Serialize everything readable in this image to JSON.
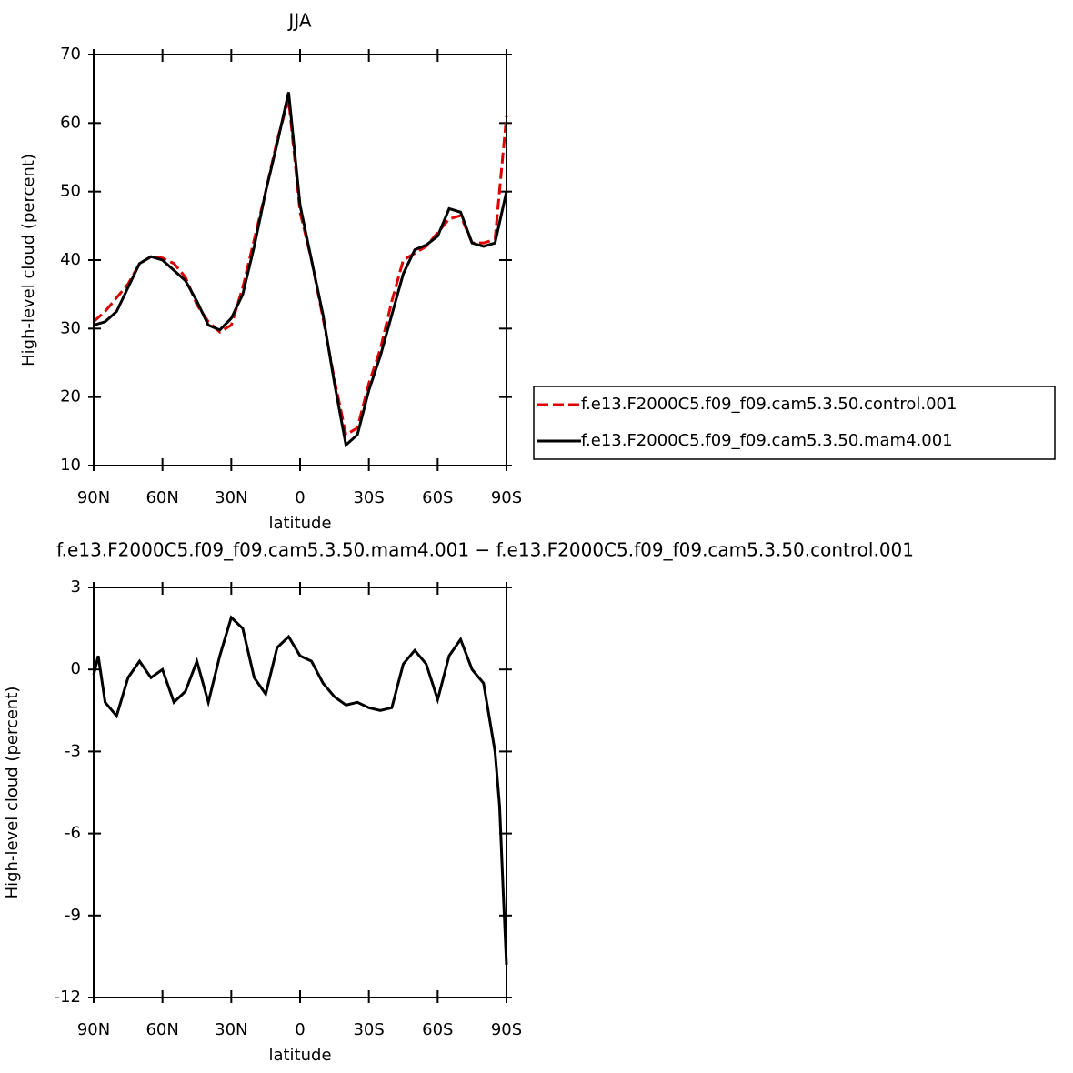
{
  "chart_data": [
    {
      "type": "line",
      "title": "JJA",
      "xlabel": "latitude",
      "ylabel": "High-level cloud (percent)",
      "x": [
        90,
        85,
        80,
        75,
        70,
        65,
        60,
        55,
        50,
        45,
        40,
        35,
        30,
        25,
        20,
        15,
        10,
        5,
        0,
        -5,
        -10,
        -15,
        -20,
        -25,
        -30,
        -35,
        -40,
        -45,
        -50,
        -55,
        -60,
        -65,
        -70,
        -75,
        -80,
        -85,
        -90
      ],
      "series": [
        {
          "name": "f.e13.F2000C5.f09_f09.cam5.3.50.control.001",
          "color": "#e00000",
          "dash": true,
          "values": [
            31,
            32.5,
            34.5,
            36.5,
            39.5,
            40.5,
            40.3,
            39.5,
            37.5,
            33.5,
            31,
            29.5,
            30.5,
            36,
            43,
            50,
            57.5,
            63.5,
            47,
            40,
            31.5,
            22.5,
            14.5,
            15.5,
            22,
            27,
            34,
            40,
            41,
            42,
            44,
            46,
            46.5,
            42.5,
            42.5,
            43,
            61
          ]
        },
        {
          "name": "f.e13.F2000C5.f09_f09.cam5.3.50.mam4.001",
          "color": "#000000",
          "dash": false,
          "values": [
            30.5,
            31,
            32.5,
            36,
            39.5,
            40.5,
            40,
            38.5,
            37,
            34,
            30.5,
            29.8,
            31.5,
            35,
            42,
            50,
            57,
            64.5,
            48,
            40,
            32,
            22,
            13,
            14.5,
            21,
            26,
            32,
            38,
            41.5,
            42.2,
            43.5,
            47.5,
            47,
            42.5,
            42,
            42.5,
            50
          ]
        }
      ],
      "xlim": [
        90,
        -90
      ],
      "ylim": [
        10,
        70
      ],
      "xticks": [
        {
          "value": 90,
          "label": "90N"
        },
        {
          "value": 60,
          "label": "60N"
        },
        {
          "value": 30,
          "label": "30N"
        },
        0,
        {
          "value": -30,
          "label": "30S"
        },
        {
          "value": -60,
          "label": "60S"
        },
        {
          "value": -90,
          "label": "90S"
        }
      ],
      "yticks": [
        10,
        20,
        30,
        40,
        50,
        60,
        70
      ],
      "legend": "right"
    },
    {
      "type": "line",
      "title": "f.e13.F2000C5.f09_f09.cam5.3.50.mam4.001 − f.e13.F2000C5.f09_f09.cam5.3.50.control.001",
      "xlabel": "latitude",
      "ylabel": "High-level cloud (percent)",
      "x": [
        90,
        88,
        85,
        80,
        75,
        70,
        65,
        60,
        55,
        50,
        45,
        40,
        35,
        30,
        25,
        20,
        15,
        10,
        5,
        0,
        -5,
        -10,
        -15,
        -20,
        -25,
        -30,
        -35,
        -40,
        -45,
        -50,
        -55,
        -60,
        -65,
        -70,
        -75,
        -80,
        -85,
        -87,
        -88.5,
        -90
      ],
      "series": [
        {
          "color": "#000000",
          "dash": false,
          "values": [
            -0.2,
            0.5,
            -1.2,
            -1.7,
            -0.3,
            0.3,
            -0.3,
            0,
            -1.2,
            -0.8,
            0.3,
            -1.2,
            0.5,
            1.9,
            1.5,
            -0.3,
            -0.9,
            0.8,
            1.2,
            0.5,
            0.3,
            -0.5,
            -1.0,
            -1.3,
            -1.2,
            -1.4,
            -1.5,
            -1.4,
            0.2,
            0.7,
            0.2,
            -1.1,
            0.5,
            1.1,
            0,
            -0.5,
            -3.0,
            -5,
            -8,
            -10.8
          ]
        }
      ],
      "xlim": [
        90,
        -90
      ],
      "ylim": [
        -12,
        3
      ],
      "xticks": [
        {
          "value": 90,
          "label": "90N"
        },
        {
          "value": 60,
          "label": "60N"
        },
        {
          "value": 30,
          "label": "30N"
        },
        0,
        {
          "value": -30,
          "label": "30S"
        },
        {
          "value": -60,
          "label": "60S"
        },
        {
          "value": -90,
          "label": "90S"
        }
      ],
      "yticks": [
        -12,
        -9,
        -6,
        -3,
        0,
        3
      ]
    }
  ]
}
